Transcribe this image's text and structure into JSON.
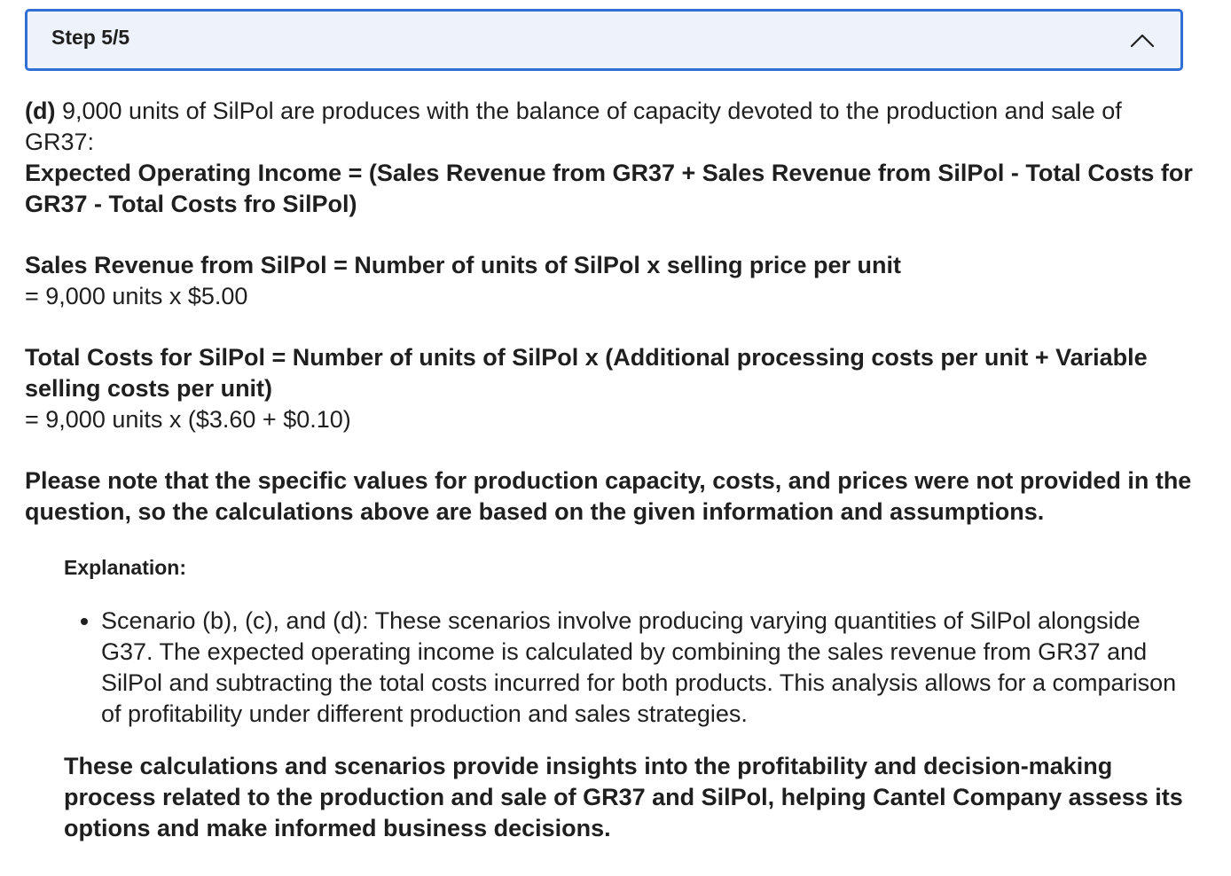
{
  "step": {
    "title": "Step 5/5"
  },
  "intro": {
    "label": "(d)",
    "text": " 9,000 units of SilPol are produces with the balance of capacity devoted to the production and sale of GR37:"
  },
  "formula_expected": "Expected Operating Income = (Sales Revenue from GR37 + Sales Revenue from SilPol - Total Costs for GR37 - Total Costs fro SilPol)",
  "sales_revenue": {
    "formula": "Sales Revenue from SilPol = Number of units of SilPol x selling price per unit",
    "calc": "= 9,000 units x $5.00"
  },
  "total_costs": {
    "formula": "Total Costs for SilPol = Number of units of SilPol x (Additional processing costs per unit + Variable selling costs per unit)",
    "calc": "= 9,000 units x ($3.60 + $0.10)"
  },
  "note": "Please note that the specific values for production capacity, costs, and prices were not provided in the question, so the calculations above are based on the given information and assumptions.",
  "explanation": {
    "label": "Explanation:",
    "bullets": [
      "Scenario (b), (c), and (d): These scenarios involve producing varying quantities of SilPol alongside G37. The expected operating income is calculated by combining the sales revenue from GR37 and SilPol and subtracting the total costs incurred for both products. This analysis allows for a comparison of profitability under different production and sales strategies."
    ],
    "closing": "These calculations and scenarios provide insights into the profitability and decision-making process related to the production and sale of GR37 and SilPol, helping Cantel Company assess its options and make informed business decisions."
  },
  "icons": {
    "collapse": "chevron-up-icon"
  },
  "colors": {
    "accent_border": "#2f6fd6",
    "header_bg": "#eef2fb",
    "text": "#1f1f1f"
  }
}
